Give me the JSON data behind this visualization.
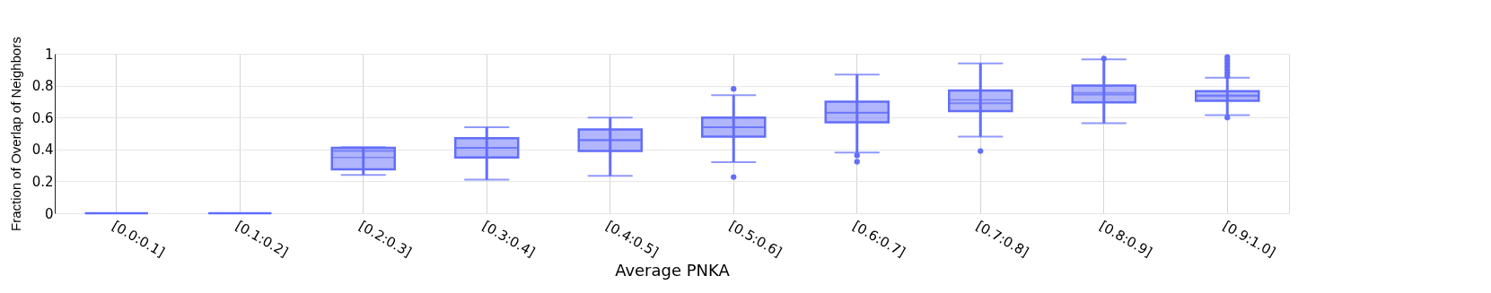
{
  "chart_data": {
    "type": "box",
    "xlabel": "Average PNKA",
    "ylabel": "Fraction of Overlap of Neighbors",
    "categories": [
      "[0.0:0.1]",
      "[0.1:0.2]",
      "[0.2:0.3]",
      "[0.3:0.4]",
      "[0.4:0.5]",
      "[0.5:0.6]",
      "[0.6:0.7]",
      "[0.7:0.8]",
      "[0.8:0.9]",
      "[0.9:1.0]"
    ],
    "color": "#636efa",
    "boxes": [
      {
        "low": 0,
        "q1": 0,
        "median": 0,
        "q3": 0,
        "high": 0,
        "mean": 0
      },
      {
        "low": 0,
        "q1": 0,
        "median": 0,
        "q3": 0,
        "high": 0,
        "mean": 0
      },
      {
        "low": 0.24,
        "q1": 0.275,
        "median": 0.39,
        "q3": 0.41,
        "high": 0.415,
        "mean": 0.35
      },
      {
        "low": 0.21,
        "q1": 0.35,
        "median": 0.41,
        "q3": 0.47,
        "high": 0.54,
        "mean": 0.41
      },
      {
        "low": 0.235,
        "q1": 0.39,
        "median": 0.46,
        "q3": 0.525,
        "high": 0.6,
        "mean": 0.455
      },
      {
        "low": 0.32,
        "q1": 0.48,
        "median": 0.54,
        "q3": 0.6,
        "high": 0.74,
        "mean": 0.54,
        "outliers": [
          0.78,
          0.227
        ]
      },
      {
        "low": 0.38,
        "q1": 0.57,
        "median": 0.63,
        "q3": 0.7,
        "high": 0.87,
        "mean": 0.63,
        "outliers": [
          0.363,
          0.323
        ]
      },
      {
        "low": 0.48,
        "q1": 0.64,
        "median": 0.69,
        "q3": 0.77,
        "high": 0.94,
        "mean": 0.71,
        "outliers": [
          0.39
        ]
      },
      {
        "low": 0.565,
        "q1": 0.695,
        "median": 0.745,
        "q3": 0.8,
        "high": 0.965,
        "mean": 0.755,
        "outliers": [
          0.97
        ]
      },
      {
        "low": 0.615,
        "q1": 0.705,
        "median": 0.735,
        "q3": 0.765,
        "high": 0.85,
        "mean": 0.74,
        "outliers": [
          0.6,
          0.86,
          0.88,
          0.9,
          0.92,
          0.94,
          0.96,
          0.98
        ]
      }
    ],
    "ylim": [
      0,
      1
    ],
    "yticks": [
      0,
      {
        "value": 0.2,
        "label": "0.2"
      },
      {
        "value": 0.4,
        "label": "0.4"
      },
      {
        "value": 0.6,
        "label": "0.6"
      },
      {
        "value": 0.8,
        "label": "0.8"
      },
      1
    ],
    "grid": true
  }
}
